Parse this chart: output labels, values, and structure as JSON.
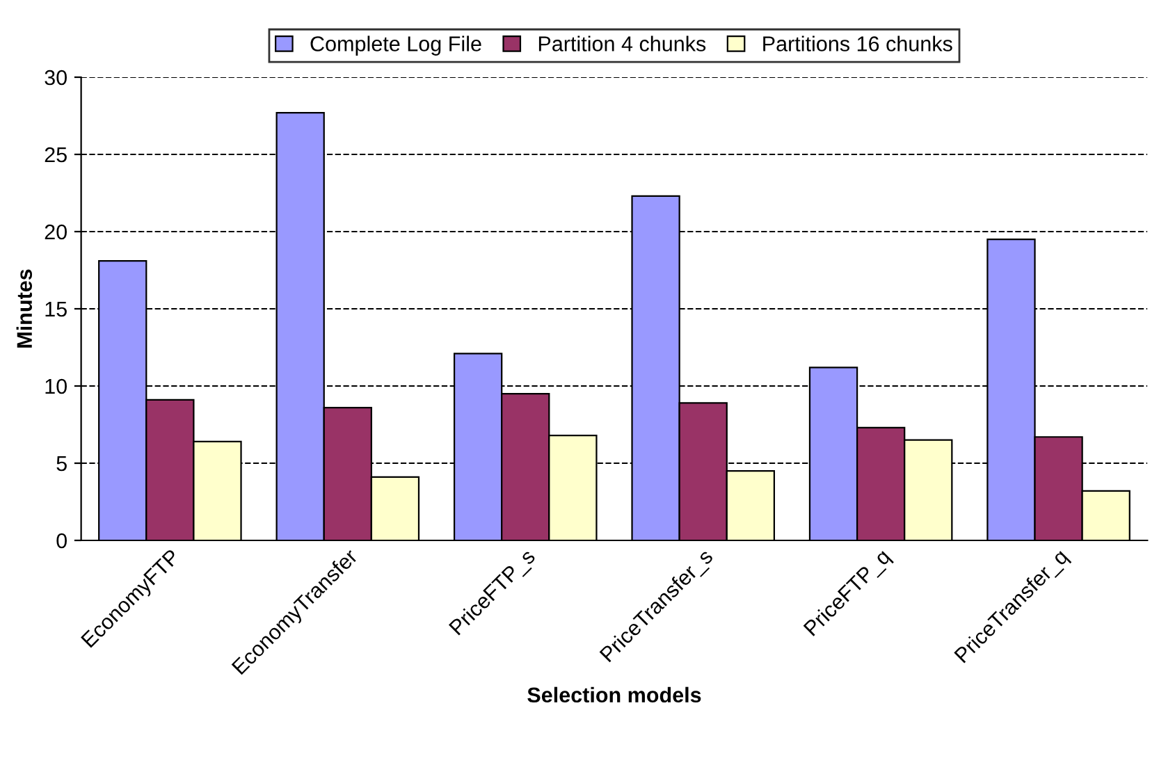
{
  "chart_data": {
    "type": "bar",
    "xlabel": "Selection models",
    "ylabel": "Minutes",
    "categories": [
      "EconomyFTP",
      "EconomyTransfer",
      "PriceFTP_s",
      "PriceTransfer_s",
      "PriceFTP_q",
      "PriceTransfer_q"
    ],
    "series": [
      {
        "name": "Complete Log File",
        "color": "#9999ff",
        "values": [
          18.1,
          27.7,
          12.1,
          22.3,
          11.2,
          19.5
        ]
      },
      {
        "name": "Partition 4 chunks",
        "color": "#993366",
        "values": [
          9.1,
          8.6,
          9.5,
          8.9,
          7.3,
          6.7
        ]
      },
      {
        "name": "Partitions 16 chunks",
        "color": "#ffffcc",
        "values": [
          6.4,
          4.1,
          6.8,
          4.5,
          6.5,
          3.2
        ]
      }
    ],
    "ylim": [
      0,
      30
    ],
    "yticks": [
      0,
      5,
      10,
      15,
      20,
      25,
      30
    ],
    "grid": "y",
    "line_style": "dashed",
    "legend": "top"
  }
}
